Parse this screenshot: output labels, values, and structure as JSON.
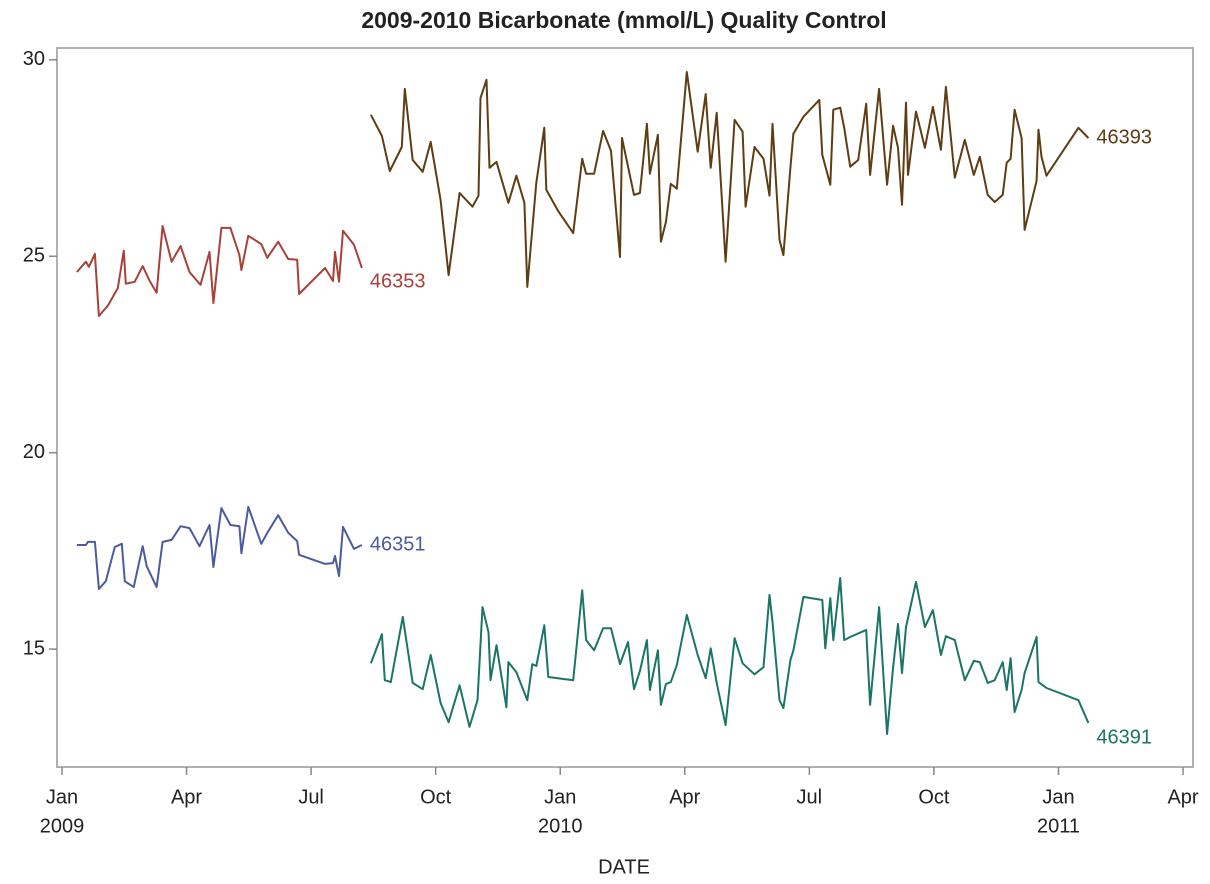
{
  "chart_data": {
    "type": "line",
    "title": "2009-2010 Bicarbonate (mmol/L) Quality Control",
    "x_label": "DATE",
    "xlim": [
      2008.99,
      2011.27
    ],
    "ylim": [
      12,
      30.3
    ],
    "xticks": [
      {
        "value": 2009,
        "label": "Jan"
      },
      {
        "value": 2009.25,
        "label": "Apr"
      },
      {
        "value": 2009.5,
        "label": "Jul"
      },
      {
        "value": 2009.75,
        "label": "Oct"
      },
      {
        "value": 2010,
        "label": "Jan"
      },
      {
        "value": 2010.25,
        "label": "Apr"
      },
      {
        "value": 2010.5,
        "label": "Jul"
      },
      {
        "value": 2010.75,
        "label": "Oct"
      },
      {
        "value": 2011,
        "label": "Jan"
      },
      {
        "value": 2011.25,
        "label": "Apr"
      }
    ],
    "year_labels": [
      2009,
      2010,
      2011
    ],
    "yticks": [
      15,
      20,
      25,
      30
    ],
    "grid": false,
    "series": [
      {
        "name": "46353",
        "color": "#a8413a",
        "x": [
          2009.03,
          2009.048,
          2009.054,
          2009.066,
          2009.074,
          2009.092,
          2009.112,
          2009.124,
          2009.128,
          2009.146,
          2009.162,
          2009.176,
          2009.19,
          2009.202,
          2009.22,
          2009.238,
          2009.256,
          2009.278,
          2009.296,
          2009.304,
          2009.32,
          2009.338,
          2009.356,
          2009.36,
          2009.374,
          2009.4,
          2009.412,
          2009.434,
          2009.454,
          2009.472,
          2009.476,
          2009.528,
          2009.544,
          2009.548,
          2009.556,
          2009.564,
          2009.586,
          2009.602
        ],
        "values": [
          24.6,
          24.86,
          24.73,
          25.06,
          23.48,
          23.74,
          24.19,
          25.14,
          24.3,
          24.35,
          24.75,
          24.37,
          24.07,
          25.77,
          24.86,
          25.26,
          24.6,
          24.27,
          25.11,
          23.81,
          25.72,
          25.72,
          25.03,
          24.65,
          25.52,
          25.31,
          24.96,
          25.37,
          24.93,
          24.91,
          24.04,
          24.7,
          24.37,
          25.11,
          24.35,
          25.65,
          25.29,
          24.7
        ]
      },
      {
        "name": "46351",
        "color": "#4d5a9e",
        "x": [
          2009.03,
          2009.048,
          2009.052,
          2009.066,
          2009.074,
          2009.088,
          2009.106,
          2009.12,
          2009.126,
          2009.144,
          2009.162,
          2009.17,
          2009.19,
          2009.202,
          2009.22,
          2009.238,
          2009.256,
          2009.276,
          2009.296,
          2009.304,
          2009.32,
          2009.338,
          2009.356,
          2009.36,
          2009.374,
          2009.4,
          2009.412,
          2009.434,
          2009.454,
          2009.472,
          2009.476,
          2009.528,
          2009.544,
          2009.548,
          2009.556,
          2009.564,
          2009.586,
          2009.602
        ],
        "values": [
          17.65,
          17.65,
          17.73,
          17.73,
          16.53,
          16.73,
          17.6,
          17.68,
          16.73,
          16.58,
          17.62,
          17.11,
          16.58,
          17.73,
          17.78,
          18.13,
          18.08,
          17.62,
          18.16,
          17.09,
          18.59,
          18.16,
          18.13,
          17.44,
          18.62,
          17.68,
          17.96,
          18.41,
          17.96,
          17.75,
          17.4,
          17.17,
          17.19,
          17.37,
          16.86,
          18.11,
          17.55,
          17.65
        ]
      },
      {
        "name": "46393",
        "color": "#5e3d12",
        "x": [
          2009.62,
          2009.642,
          2009.658,
          2009.682,
          2009.688,
          2009.704,
          2009.724,
          2009.74,
          2009.76,
          2009.776,
          2009.798,
          2009.824,
          2009.836,
          2009.84,
          2009.852,
          2009.858,
          2009.872,
          2009.896,
          2009.912,
          2009.928,
          2009.934,
          2009.952,
          2009.968,
          2009.972,
          2009.996,
          2010.026,
          2010.044,
          2010.052,
          2010.068,
          2010.086,
          2010.102,
          2010.12,
          2010.124,
          2010.148,
          2010.16,
          2010.174,
          2010.18,
          2010.196,
          2010.202,
          2010.212,
          2010.222,
          2010.234,
          2010.254,
          2010.276,
          2010.292,
          2010.302,
          2010.314,
          2010.332,
          2010.35,
          2010.366,
          2010.372,
          2010.39,
          2010.408,
          2010.42,
          2010.426,
          2010.44,
          2010.448,
          2010.462,
          2010.468,
          2010.488,
          2010.52,
          2010.526,
          2010.542,
          2010.548,
          2010.562,
          2010.57,
          2010.582,
          2010.598,
          2010.614,
          2010.622,
          2010.64,
          2010.656,
          2010.668,
          2010.678,
          2010.686,
          2010.694,
          2010.698,
          2010.714,
          2010.732,
          2010.748,
          2010.764,
          2010.774,
          2010.792,
          2010.812,
          2010.83,
          2010.842,
          2010.858,
          2010.872,
          2010.888,
          2010.896,
          2010.904,
          2010.912,
          2010.926,
          2010.932,
          2010.956,
          2010.96,
          2010.966,
          2010.976,
          2011.04,
          2011.06
        ],
        "values": [
          28.6,
          28.06,
          27.17,
          27.78,
          29.26,
          27.45,
          27.15,
          27.91,
          26.43,
          24.52,
          26.61,
          26.26,
          26.54,
          29.03,
          29.49,
          27.25,
          27.4,
          26.36,
          27.05,
          26.36,
          24.22,
          26.87,
          28.27,
          26.69,
          26.15,
          25.59,
          27.48,
          27.1,
          27.1,
          28.19,
          27.68,
          24.98,
          28.01,
          26.56,
          26.61,
          28.37,
          27.1,
          28.09,
          25.37,
          25.87,
          26.84,
          26.72,
          29.69,
          27.66,
          29.13,
          27.25,
          28.65,
          24.86,
          28.47,
          28.17,
          26.26,
          27.78,
          27.48,
          26.54,
          28.37,
          25.42,
          25.03,
          27.25,
          28.12,
          28.55,
          28.98,
          27.58,
          26.82,
          28.73,
          28.78,
          28.27,
          27.28,
          27.45,
          28.88,
          27.07,
          29.26,
          26.82,
          28.32,
          27.76,
          26.31,
          28.91,
          27.07,
          28.68,
          27.76,
          28.8,
          27.71,
          29.31,
          27.0,
          27.96,
          27.07,
          27.53,
          26.56,
          26.38,
          26.56,
          27.38,
          27.48,
          28.73,
          28.01,
          25.67,
          26.92,
          28.22,
          27.53,
          27.05,
          28.27,
          28.01
        ]
      },
      {
        "name": "46391",
        "color": "#1b7565",
        "x": [
          2009.62,
          2009.642,
          2009.648,
          2009.66,
          2009.684,
          2009.704,
          2009.724,
          2009.74,
          2009.76,
          2009.776,
          2009.798,
          2009.818,
          2009.834,
          2009.844,
          2009.856,
          2009.86,
          2009.872,
          2009.892,
          2009.896,
          2009.912,
          2009.934,
          2009.944,
          2009.952,
          2009.968,
          2009.976,
          2010.026,
          2010.044,
          2010.052,
          2010.068,
          2010.086,
          2010.102,
          2010.12,
          2010.136,
          2010.148,
          2010.16,
          2010.174,
          2010.18,
          2010.196,
          2010.202,
          2010.212,
          2010.222,
          2010.234,
          2010.254,
          2010.276,
          2010.292,
          2010.302,
          2010.314,
          2010.332,
          2010.35,
          2010.366,
          2010.39,
          2010.408,
          2010.42,
          2010.426,
          2010.44,
          2010.448,
          2010.462,
          2010.468,
          2010.488,
          2010.526,
          2010.532,
          2010.542,
          2010.548,
          2010.562,
          2010.57,
          2010.582,
          2010.614,
          2010.622,
          2010.64,
          2010.656,
          2010.668,
          2010.678,
          2010.686,
          2010.694,
          2010.714,
          2010.732,
          2010.748,
          2010.764,
          2010.774,
          2010.792,
          2010.812,
          2010.83,
          2010.842,
          2010.858,
          2010.872,
          2010.888,
          2010.896,
          2010.904,
          2010.912,
          2010.926,
          2010.932,
          2010.956,
          2010.96,
          2010.976,
          2011.04,
          2011.06
        ],
        "values": [
          14.64,
          15.38,
          14.21,
          14.16,
          15.82,
          14.14,
          13.98,
          14.85,
          13.63,
          13.14,
          14.08,
          13.02,
          13.7,
          16.07,
          15.43,
          14.21,
          15.1,
          13.52,
          14.67,
          14.41,
          13.7,
          14.62,
          14.57,
          15.61,
          14.29,
          14.21,
          16.5,
          15.23,
          14.97,
          15.53,
          15.53,
          14.62,
          15.18,
          13.98,
          14.44,
          15.23,
          13.96,
          14.97,
          13.58,
          14.11,
          14.16,
          14.59,
          15.87,
          14.85,
          14.26,
          15.02,
          14.14,
          13.07,
          15.28,
          14.64,
          14.36,
          14.54,
          16.38,
          15.69,
          13.7,
          13.5,
          14.72,
          14.97,
          16.33,
          16.25,
          15.02,
          16.3,
          15.23,
          16.81,
          15.23,
          15.31,
          15.49,
          13.58,
          16.07,
          12.84,
          14.54,
          15.64,
          14.39,
          15.56,
          16.71,
          15.56,
          15.99,
          14.85,
          15.33,
          15.23,
          14.21,
          14.7,
          14.67,
          14.14,
          14.21,
          14.67,
          13.96,
          14.77,
          13.4,
          13.96,
          14.39,
          15.31,
          14.16,
          14.01,
          13.7,
          13.12
        ]
      }
    ]
  }
}
